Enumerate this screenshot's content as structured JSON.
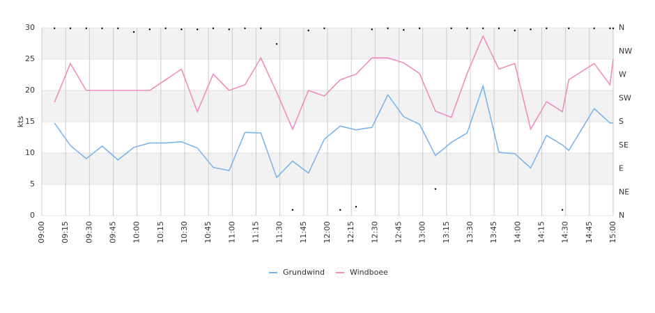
{
  "chart_data": {
    "type": "line",
    "ylabel": "kts",
    "x": [
      "09:08",
      "09:18",
      "09:28",
      "09:38",
      "09:48",
      "09:58",
      "10:08",
      "10:18",
      "10:28",
      "10:38",
      "10:48",
      "10:58",
      "11:08",
      "11:18",
      "11:28",
      "11:38",
      "11:48",
      "11:58",
      "12:08",
      "12:18",
      "12:28",
      "12:38",
      "12:48",
      "12:58",
      "13:08",
      "13:18",
      "13:28",
      "13:38",
      "13:48",
      "13:58",
      "14:08",
      "14:18",
      "14:28",
      "14:32",
      "14:48",
      "14:58",
      "15:00"
    ],
    "xlim": [
      "09:00",
      "15:00"
    ],
    "xticks": [
      "09:00",
      "09:15",
      "09:30",
      "09:45",
      "10:00",
      "10:15",
      "10:30",
      "10:45",
      "11:00",
      "11:15",
      "11:30",
      "11:45",
      "12:00",
      "12:15",
      "12:30",
      "12:45",
      "13:00",
      "13:15",
      "13:30",
      "13:45",
      "14:00",
      "14:15",
      "14:30",
      "14:45",
      "15:00"
    ],
    "ylim": [
      0,
      30
    ],
    "yticks": [
      0,
      5,
      10,
      15,
      20,
      25,
      30
    ],
    "y2lim": [
      0,
      360
    ],
    "y2ticks": [
      {
        "value": 0,
        "label": "N"
      },
      {
        "value": 45,
        "label": "NE"
      },
      {
        "value": 90,
        "label": "E"
      },
      {
        "value": 135,
        "label": "SE"
      },
      {
        "value": 180,
        "label": "S"
      },
      {
        "value": 225,
        "label": "SW"
      },
      {
        "value": 270,
        "label": "W"
      },
      {
        "value": 315,
        "label": "NW"
      },
      {
        "value": 360,
        "label": "N"
      }
    ],
    "grid": true,
    "legend": "bottom",
    "series": [
      {
        "name": "Grundwind",
        "color": "#7cb5ec",
        "values": [
          14.8,
          11.2,
          9.1,
          11.1,
          8.9,
          10.9,
          11.6,
          11.6,
          11.8,
          10.8,
          7.7,
          7.2,
          13.3,
          13.2,
          6.1,
          8.7,
          6.8,
          12.2,
          14.3,
          13.7,
          14.1,
          19.3,
          15.8,
          14.6,
          9.6,
          11.7,
          13.2,
          20.7,
          10.1,
          9.9,
          7.6,
          12.8,
          11.3,
          10.4,
          17.1,
          14.8,
          14.8
        ]
      },
      {
        "name": "Windboee",
        "color": "#f08cbf",
        "values": [
          18.1,
          24.3,
          20,
          20,
          20,
          20,
          20,
          21.7,
          23.4,
          16.6,
          22.6,
          20,
          20.9,
          25.2,
          19.7,
          13.8,
          20,
          19.1,
          21.7,
          22.6,
          25.2,
          25.2,
          24.4,
          22.7,
          16.7,
          15.7,
          22.7,
          28.7,
          23.4,
          24.3,
          13.8,
          18.2,
          16.6,
          21.7,
          24.3,
          20.9,
          25
        ]
      },
      {
        "axis": "y2",
        "color": "#000000",
        "marker": "dot",
        "values": [
          359,
          359,
          359,
          359,
          359,
          352,
          357,
          359,
          357,
          357,
          359,
          357,
          359,
          359,
          329,
          11,
          355,
          359,
          11,
          17,
          357,
          359,
          356,
          359,
          51,
          359,
          359,
          359,
          359,
          355,
          357,
          359,
          11,
          359,
          359,
          359,
          359
        ]
      }
    ]
  }
}
